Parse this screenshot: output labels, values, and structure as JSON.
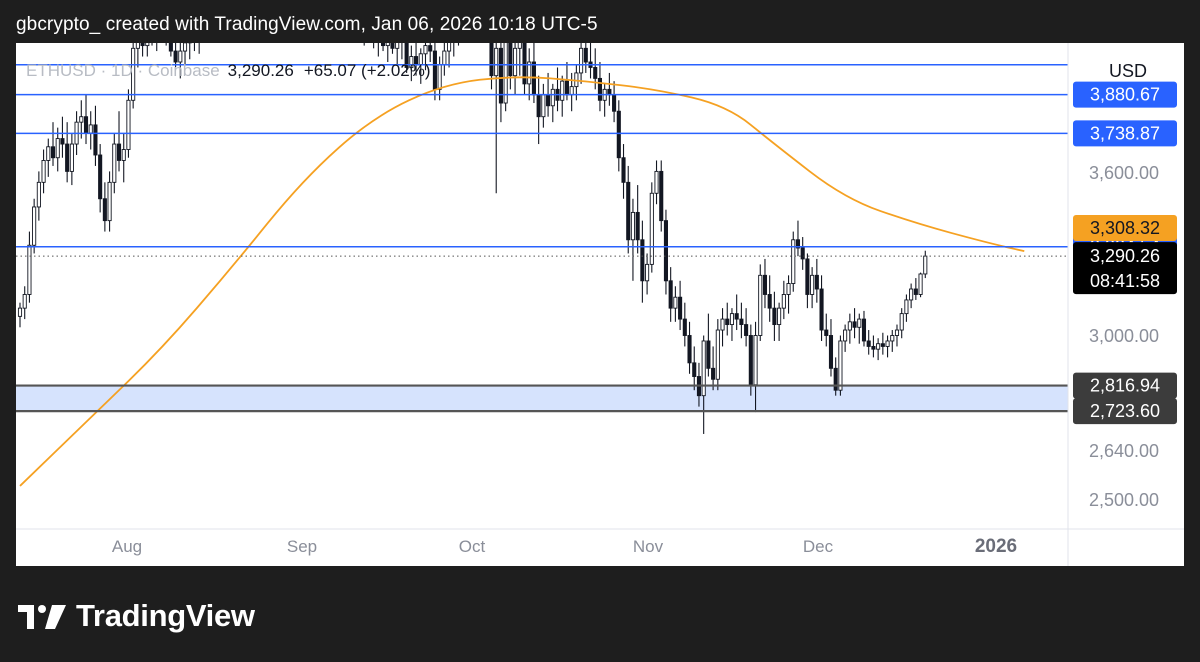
{
  "header": {
    "text": "gbcrypto_ created with TradingView.com, Jan 06, 2026 10:18 UTC-5"
  },
  "legend": {
    "symbol": "ETHUSD · 1D · Coinbase",
    "price": "3,290.26",
    "change": "+65.07 (+2.02%)"
  },
  "chart_data": {
    "type": "candlestick",
    "currency": "USD",
    "price_axis_ticks": [
      "3,600.00",
      "3,000.00",
      "2,640.00",
      "2,500.00"
    ],
    "time_axis_labels": [
      "Aug",
      "Sep",
      "Oct",
      "Nov",
      "Dec",
      "2026"
    ],
    "horizontal_levels": [
      {
        "value": 4080,
        "color": "#2962ff"
      },
      {
        "value": 3990,
        "color": "#2962ff"
      },
      {
        "value": 3880.67,
        "label": "3,880.67",
        "color": "#2962ff"
      },
      {
        "value": 3738.87,
        "label": "3,738.87",
        "color": "#2962ff"
      },
      {
        "value": 3324.54,
        "label": "3,324.54",
        "color": "#2962ff"
      },
      {
        "value": 2816.94,
        "label": "2,816.94",
        "color": "#555555"
      },
      {
        "value": 2723.6,
        "label": "2,723.60",
        "color": "#555555"
      }
    ],
    "support_zone": {
      "low": 2723.6,
      "high": 2816.94,
      "color": "#d6e3fd"
    },
    "moving_average": {
      "color": "#f5a122",
      "current_label": "3,308.32",
      "x": [
        0,
        15,
        30,
        45,
        60,
        75,
        90,
        105,
        120,
        135,
        150,
        160,
        175,
        190,
        205,
        213
      ],
      "y": [
        2450,
        2700,
        2950,
        3250,
        3570,
        3800,
        3920,
        3950,
        3930,
        3900,
        3840,
        3700,
        3500,
        3410,
        3340,
        3308.32
      ]
    },
    "last_price": {
      "value": 3290.26,
      "label": "3,290.26",
      "countdown": "08:41:58"
    },
    "candles": [
      [
        3070,
        3120,
        3030,
        3100
      ],
      [
        3100,
        3180,
        3060,
        3150
      ],
      [
        3150,
        3380,
        3120,
        3330
      ],
      [
        3330,
        3500,
        3300,
        3470
      ],
      [
        3470,
        3600,
        3420,
        3560
      ],
      [
        3560,
        3680,
        3520,
        3640
      ],
      [
        3640,
        3720,
        3580,
        3690
      ],
      [
        3690,
        3780,
        3620,
        3650
      ],
      [
        3650,
        3760,
        3600,
        3720
      ],
      [
        3720,
        3800,
        3650,
        3700
      ],
      [
        3700,
        3780,
        3560,
        3600
      ],
      [
        3600,
        3740,
        3550,
        3700
      ],
      [
        3700,
        3820,
        3660,
        3780
      ],
      [
        3780,
        3860,
        3720,
        3800
      ],
      [
        3800,
        3880,
        3700,
        3740
      ],
      [
        3740,
        3820,
        3680,
        3770
      ],
      [
        3770,
        3840,
        3620,
        3660
      ],
      [
        3660,
        3700,
        3450,
        3500
      ],
      [
        3500,
        3560,
        3380,
        3420
      ],
      [
        3420,
        3600,
        3380,
        3560
      ],
      [
        3560,
        3740,
        3520,
        3700
      ],
      [
        3700,
        3820,
        3600,
        3640
      ],
      [
        3640,
        3740,
        3560,
        3680
      ],
      [
        3680,
        3900,
        3650,
        3860
      ],
      [
        3860,
        4080,
        3830,
        4050
      ],
      [
        4050,
        4120,
        3980,
        4080
      ],
      [
        4080,
        4150,
        4020,
        4060
      ],
      [
        4060,
        4160,
        4020,
        4120
      ],
      [
        4120,
        4200,
        4060,
        4100
      ],
      [
        4100,
        4180,
        4040,
        4150
      ],
      [
        4150,
        4220,
        4080,
        4130
      ],
      [
        4130,
        4180,
        4060,
        4100
      ],
      [
        4100,
        4160,
        4020,
        4040
      ],
      [
        4040,
        4090,
        3980,
        4000
      ],
      [
        4000,
        4070,
        3940,
        4040
      ],
      [
        4040,
        4110,
        3990,
        4070
      ],
      [
        4070,
        4140,
        4010,
        4110
      ],
      [
        4110,
        4170,
        4040,
        4080
      ],
      [
        4080,
        4150,
        4030,
        4120
      ],
      [
        4120,
        4200,
        4070,
        4160
      ],
      [
        4160,
        4230,
        4100,
        4180
      ],
      [
        4180,
        4240,
        4110,
        4140
      ],
      [
        4140,
        4200,
        4080,
        4170
      ],
      [
        4170,
        4250,
        4110,
        4210
      ],
      [
        4210,
        4280,
        4150,
        4190
      ],
      [
        4190,
        4250,
        4120,
        4230
      ],
      [
        4230,
        4300,
        4170,
        4250
      ],
      [
        4250,
        4320,
        4190,
        4270
      ],
      [
        4270,
        4330,
        4200,
        4240
      ],
      [
        4240,
        4300,
        4180,
        4280
      ],
      [
        4280,
        4350,
        4220,
        4300
      ],
      [
        4300,
        4360,
        4240,
        4260
      ],
      [
        4260,
        4330,
        4200,
        4310
      ],
      [
        4310,
        4380,
        4250,
        4290
      ],
      [
        4290,
        4350,
        4230,
        4320
      ],
      [
        4320,
        4400,
        4260,
        4340
      ],
      [
        4340,
        4400,
        4280,
        4300
      ],
      [
        4300,
        4370,
        4240,
        4330
      ],
      [
        4330,
        4390,
        4270,
        4350
      ],
      [
        4350,
        4420,
        4290,
        4310
      ],
      [
        4310,
        4370,
        4250,
        4280
      ],
      [
        4280,
        4340,
        4220,
        4300
      ],
      [
        4300,
        4360,
        4240,
        4260
      ],
      [
        4260,
        4320,
        4200,
        4290
      ],
      [
        4290,
        4350,
        4230,
        4250
      ],
      [
        4250,
        4300,
        4180,
        4220
      ],
      [
        4220,
        4280,
        4160,
        4240
      ],
      [
        4240,
        4300,
        4190,
        4210
      ],
      [
        4210,
        4260,
        4150,
        4180
      ],
      [
        4180,
        4240,
        4120,
        4200
      ],
      [
        4200,
        4250,
        4140,
        4160
      ],
      [
        4160,
        4210,
        4100,
        4140
      ],
      [
        4140,
        4190,
        4080,
        4120
      ],
      [
        4120,
        4170,
        4060,
        4150
      ],
      [
        4150,
        4200,
        4090,
        4110
      ],
      [
        4110,
        4160,
        4050,
        4080
      ],
      [
        4080,
        4130,
        4020,
        4100
      ],
      [
        4100,
        4150,
        4040,
        4060
      ],
      [
        4060,
        4120,
        4000,
        4090
      ],
      [
        4090,
        4140,
        4030,
        4050
      ],
      [
        4050,
        4130,
        3990,
        4080
      ],
      [
        4080,
        4140,
        4010,
        4100
      ],
      [
        4100,
        4150,
        3960,
        3980
      ],
      [
        3980,
        4060,
        3930,
        4020
      ],
      [
        4020,
        4080,
        3950,
        3990
      ],
      [
        3990,
        4050,
        3920,
        4030
      ],
      [
        4030,
        4100,
        3970,
        4060
      ],
      [
        4060,
        4120,
        4000,
        4040
      ],
      [
        4040,
        4110,
        3860,
        3900
      ],
      [
        3900,
        4020,
        3860,
        3990
      ],
      [
        3990,
        4070,
        3950,
        4040
      ],
      [
        4040,
        4110,
        3980,
        4080
      ],
      [
        4080,
        4160,
        4020,
        4120
      ],
      [
        4120,
        4190,
        4060,
        4140
      ],
      [
        4140,
        4210,
        4090,
        4180
      ],
      [
        4180,
        4240,
        4120,
        4150
      ],
      [
        4150,
        4220,
        4090,
        4190
      ],
      [
        4190,
        4260,
        4130,
        4210
      ],
      [
        4210,
        4280,
        4150,
        4180
      ],
      [
        4180,
        4240,
        4120,
        4200
      ],
      [
        4200,
        4260,
        3900,
        3950
      ],
      [
        3950,
        4100,
        3520,
        4050
      ],
      [
        4050,
        4120,
        3780,
        3850
      ],
      [
        3850,
        4200,
        3820,
        4150
      ],
      [
        4150,
        4200,
        3900,
        3950
      ],
      [
        3950,
        4100,
        3880,
        4050
      ],
      [
        4050,
        4180,
        3950,
        4100
      ],
      [
        4100,
        4200,
        3880,
        3920
      ],
      [
        3920,
        4050,
        3860,
        4000
      ],
      [
        4000,
        4080,
        3850,
        3880
      ],
      [
        3880,
        3950,
        3700,
        3800
      ],
      [
        3800,
        3920,
        3760,
        3880
      ],
      [
        3880,
        3960,
        3800,
        3840
      ],
      [
        3840,
        3920,
        3780,
        3900
      ],
      [
        3900,
        3980,
        3820,
        3860
      ],
      [
        3860,
        3950,
        3800,
        3930
      ],
      [
        3930,
        4000,
        3860,
        3880
      ],
      [
        3880,
        3960,
        3820,
        3910
      ],
      [
        3910,
        3990,
        3860,
        3960
      ],
      [
        3960,
        4080,
        3920,
        4050
      ],
      [
        4050,
        4120,
        3960,
        4000
      ],
      [
        4000,
        4080,
        3940,
        3980
      ],
      [
        3980,
        4050,
        3900,
        3940
      ],
      [
        3940,
        4000,
        3820,
        3860
      ],
      [
        3860,
        3920,
        3800,
        3900
      ],
      [
        3900,
        3960,
        3840,
        3880
      ],
      [
        3880,
        3930,
        3780,
        3820
      ],
      [
        3820,
        3860,
        3600,
        3650
      ],
      [
        3650,
        3700,
        3500,
        3560
      ],
      [
        3560,
        3620,
        3300,
        3350
      ],
      [
        3350,
        3500,
        3200,
        3450
      ],
      [
        3450,
        3550,
        3300,
        3350
      ],
      [
        3350,
        3420,
        3120,
        3200
      ],
      [
        3200,
        3300,
        3150,
        3260
      ],
      [
        3260,
        3560,
        3230,
        3520
      ],
      [
        3520,
        3640,
        3480,
        3600
      ],
      [
        3600,
        3640,
        3380,
        3420
      ],
      [
        3420,
        3460,
        3150,
        3200
      ],
      [
        3200,
        3250,
        3050,
        3100
      ],
      [
        3100,
        3180,
        3050,
        3140
      ],
      [
        3140,
        3200,
        3020,
        3060
      ],
      [
        3060,
        3120,
        2960,
        3000
      ],
      [
        3000,
        3050,
        2860,
        2900
      ],
      [
        2900,
        2960,
        2800,
        2850
      ],
      [
        2850,
        2900,
        2740,
        2780
      ],
      [
        2780,
        3000,
        2640,
        2980
      ],
      [
        2980,
        3080,
        2850,
        2880
      ],
      [
        2880,
        2960,
        2800,
        2840
      ],
      [
        2840,
        3060,
        2800,
        3020
      ],
      [
        3020,
        3100,
        2960,
        3060
      ],
      [
        3060,
        3120,
        3000,
        3040
      ],
      [
        3040,
        3100,
        2980,
        3080
      ],
      [
        3080,
        3150,
        3020,
        3060
      ],
      [
        3060,
        3120,
        2990,
        3040
      ],
      [
        3040,
        3100,
        2960,
        3000
      ],
      [
        3000,
        3040,
        2780,
        2820
      ],
      [
        2820,
        3050,
        2720,
        3000
      ],
      [
        3000,
        3260,
        2980,
        3220
      ],
      [
        3220,
        3280,
        3100,
        3150
      ],
      [
        3150,
        3220,
        3050,
        3100
      ],
      [
        3100,
        3160,
        2980,
        3040
      ],
      [
        3040,
        3120,
        2980,
        3100
      ],
      [
        3100,
        3200,
        3060,
        3150
      ],
      [
        3150,
        3220,
        3080,
        3190
      ],
      [
        3190,
        3380,
        3160,
        3350
      ],
      [
        3350,
        3420,
        3290,
        3320
      ],
      [
        3320,
        3360,
        3240,
        3280
      ],
      [
        3280,
        3300,
        3100,
        3150
      ],
      [
        3150,
        3250,
        3100,
        3220
      ],
      [
        3220,
        3280,
        3120,
        3170
      ],
      [
        3170,
        3220,
        2980,
        3020
      ],
      [
        3020,
        3080,
        2960,
        3000
      ],
      [
        3000,
        3060,
        2850,
        2880
      ],
      [
        2880,
        2920,
        2780,
        2800
      ],
      [
        2800,
        3000,
        2780,
        2980
      ],
      [
        2980,
        3040,
        2940,
        3020
      ],
      [
        3020,
        3080,
        2970,
        3050
      ],
      [
        3050,
        3100,
        2990,
        3030
      ],
      [
        3030,
        3080,
        2970,
        3060
      ],
      [
        3060,
        3090,
        2960,
        2980
      ],
      [
        2980,
        3020,
        2930,
        2960
      ],
      [
        2960,
        3000,
        2920,
        2950
      ],
      [
        2950,
        2990,
        2910,
        2970
      ],
      [
        2970,
        3010,
        2930,
        2960
      ],
      [
        2960,
        3000,
        2920,
        2980
      ],
      [
        2980,
        3020,
        2940,
        3000
      ],
      [
        3000,
        3040,
        2960,
        3020
      ],
      [
        3020,
        3100,
        2990,
        3080
      ],
      [
        3080,
        3150,
        3050,
        3130
      ],
      [
        3130,
        3190,
        3100,
        3170
      ],
      [
        3170,
        3210,
        3130,
        3150
      ],
      [
        3150,
        3230,
        3140,
        3225
      ],
      [
        3225,
        3310,
        3210,
        3290.26
      ]
    ]
  }
}
